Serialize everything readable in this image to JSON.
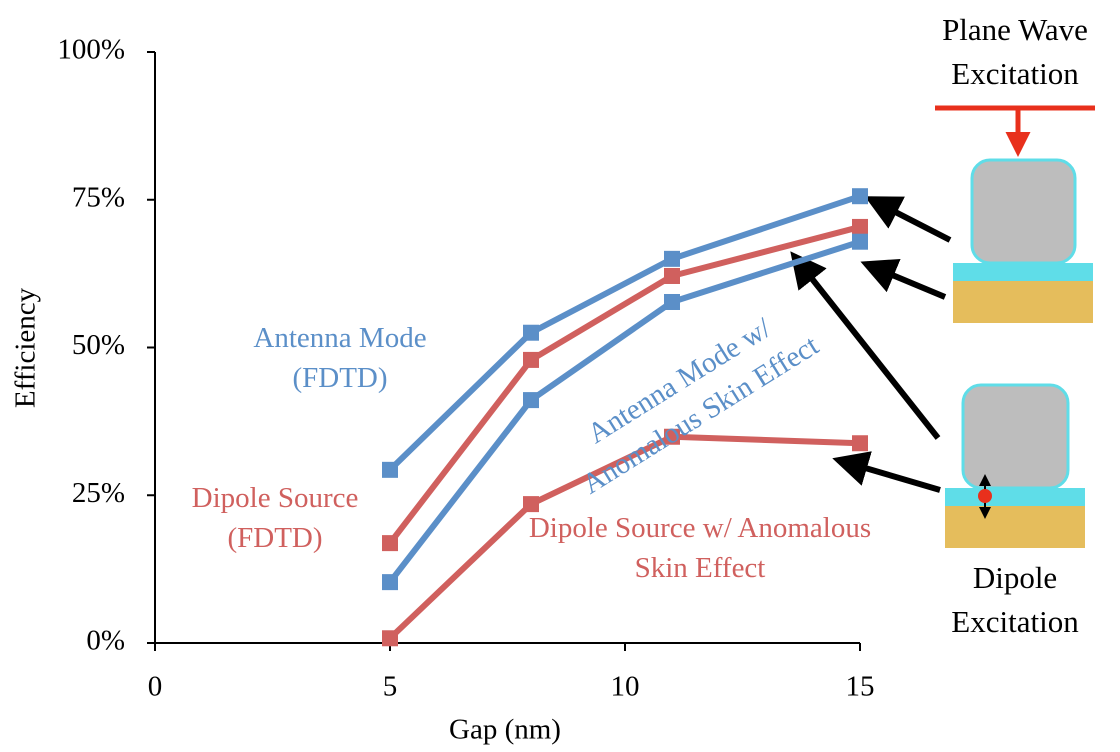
{
  "chart_data": {
    "type": "line",
    "x_label": "Gap (nm)",
    "y_label": "Efficiency",
    "x": [
      5,
      8,
      11,
      15
    ],
    "series": [
      {
        "name": "Antenna Mode (FDTD)",
        "color": "#5b8fc8",
        "values": [
          29.3,
          52.5,
          65,
          75.6
        ]
      },
      {
        "name": "Dipole Source (FDTD)",
        "color": "#d0605e",
        "values": [
          16.9,
          47.9,
          62.1,
          70.4
        ]
      },
      {
        "name": "Antenna Mode w/ Anomalous Skin Effect",
        "color": "#5b8fc8",
        "values": [
          10.3,
          41.1,
          57.7,
          67.9
        ]
      },
      {
        "name": "Dipole Source w/ Anomalous Skin Effect",
        "color": "#d0605e",
        "values": [
          0.8,
          23.5,
          34.9,
          33.8
        ]
      }
    ],
    "xlim": [
      0,
      15
    ],
    "xticks": [
      0,
      5,
      10,
      15
    ],
    "ylim": [
      0,
      100
    ],
    "yticks": [
      {
        "value": 0,
        "label": "0%"
      },
      {
        "value": 25,
        "label": "25%"
      },
      {
        "value": 50,
        "label": "50%"
      },
      {
        "value": 75,
        "label": "75%"
      },
      {
        "value": 100,
        "label": "100%"
      }
    ],
    "grid": false,
    "annotations": [
      "Plane Wave Excitation",
      "Dipole Excitation"
    ]
  }
}
